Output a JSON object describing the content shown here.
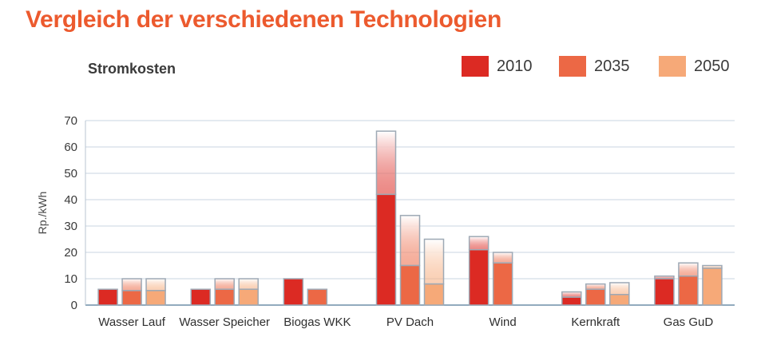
{
  "header": {
    "title": "Vergleich der verschiedenen Technologien"
  },
  "chart_data": {
    "type": "bar",
    "title": "Stromkosten",
    "xlabel": "",
    "ylabel": "Rp./kWh",
    "ylim": [
      0,
      70
    ],
    "yticks": [
      0,
      10,
      20,
      30,
      40,
      50,
      60,
      70
    ],
    "grid": true,
    "legend_position": "top-right",
    "categories": [
      "Wasser Lauf",
      "Wasser Speicher",
      "Biogas WKK",
      "PV Dach",
      "Wind",
      "Kernkraft",
      "Gas GuD"
    ],
    "series": [
      {
        "name": "2010",
        "color": "#dc2a23",
        "values": [
          6,
          6,
          10,
          42,
          21,
          3,
          10
        ],
        "upper": [
          6,
          6,
          10,
          66,
          26,
          5,
          11
        ]
      },
      {
        "name": "2035",
        "color": "#ec6845",
        "values": [
          5.5,
          6,
          6,
          15,
          16,
          6,
          11
        ],
        "upper": [
          10,
          10,
          6,
          34,
          20,
          8,
          16
        ]
      },
      {
        "name": "2050",
        "color": "#f6a978",
        "values": [
          5.5,
          6,
          null,
          8,
          null,
          4,
          14
        ],
        "upper": [
          10,
          10,
          null,
          25,
          null,
          8.5,
          15
        ]
      }
    ]
  }
}
